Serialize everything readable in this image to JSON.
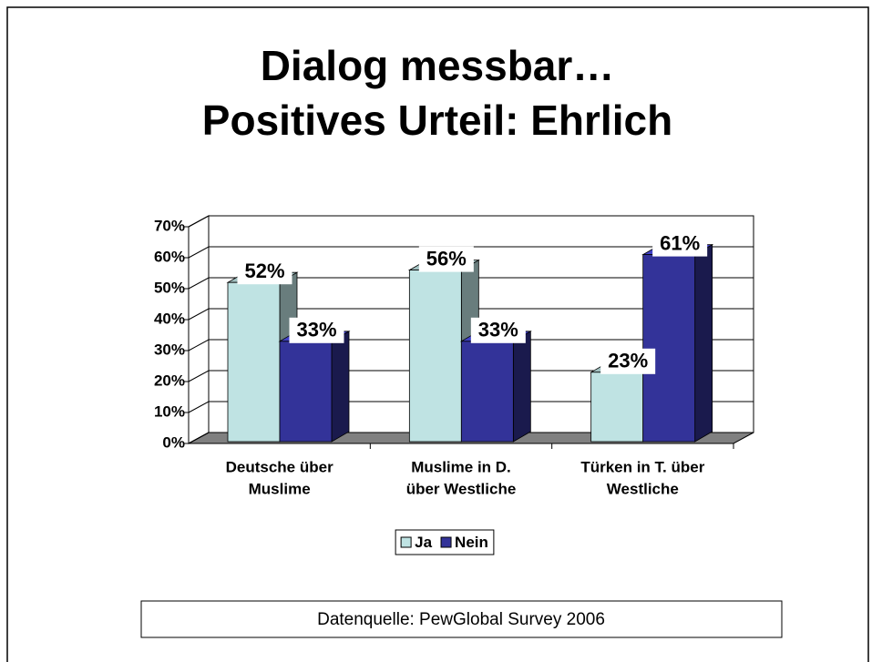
{
  "chart_data": {
    "type": "bar3d",
    "title": [
      "Dialog messbar…",
      "Positives Urteil: Ehrlich"
    ],
    "categories": [
      [
        "Deutsche über",
        "Muslime"
      ],
      [
        "Muslime in D.",
        "über Westliche"
      ],
      [
        "Türken in T. über",
        "Westliche"
      ]
    ],
    "series": [
      {
        "name": "Ja",
        "color": "#bfe3e3",
        "values": [
          52,
          56,
          23
        ],
        "value_labels": [
          "52%",
          "56%",
          "23%"
        ]
      },
      {
        "name": "Nein",
        "color": "#333399",
        "values": [
          33,
          33,
          61
        ],
        "value_labels": [
          "33%",
          "33%",
          "61%"
        ]
      }
    ],
    "ylim": [
      0,
      70
    ],
    "yticks": [
      {
        "value": 0,
        "label": "0%"
      },
      {
        "value": 10,
        "label": "10%"
      },
      {
        "value": 20,
        "label": "20%"
      },
      {
        "value": 30,
        "label": "30%"
      },
      {
        "value": 40,
        "label": "40%"
      },
      {
        "value": 50,
        "label": "50%"
      },
      {
        "value": 60,
        "label": "60%"
      },
      {
        "value": 70,
        "label": "70%"
      }
    ],
    "grid": true,
    "legend": "bottom",
    "source": "Datenquelle: PewGlobal Survey 2006"
  }
}
